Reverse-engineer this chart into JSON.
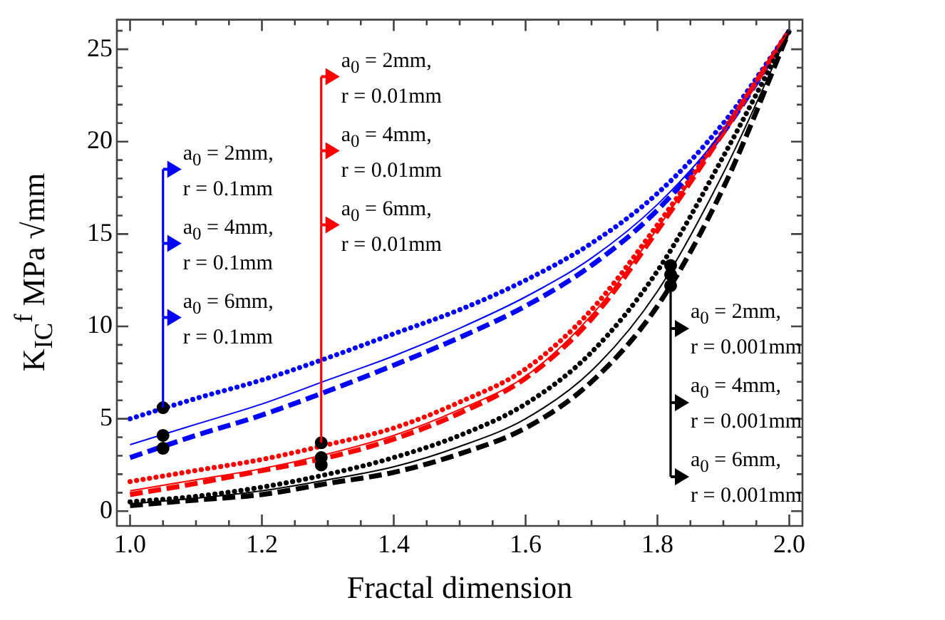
{
  "chart_data": {
    "type": "line",
    "xlabel": "Fractal dimension",
    "ylabel": "K$_{IC}$$^{f}$  MPa √mm",
    "x": [
      1.0,
      1.1,
      1.2,
      1.3,
      1.4,
      1.5,
      1.6,
      1.7,
      1.8,
      1.9,
      2.0
    ],
    "xlim": [
      0.98,
      2.02
    ],
    "xticks": [
      {
        "value": 1.0,
        "label": "1.0"
      },
      {
        "value": 1.05,
        "label": null
      },
      {
        "value": 1.1,
        "label": null
      },
      {
        "value": 1.15,
        "label": null
      },
      {
        "value": 1.2,
        "label": "1.2"
      },
      {
        "value": 1.25,
        "label": null
      },
      {
        "value": 1.3,
        "label": null
      },
      {
        "value": 1.35,
        "label": null
      },
      {
        "value": 1.4,
        "label": "1.4"
      },
      {
        "value": 1.45,
        "label": null
      },
      {
        "value": 1.5,
        "label": null
      },
      {
        "value": 1.55,
        "label": null
      },
      {
        "value": 1.6,
        "label": "1.6"
      },
      {
        "value": 1.65,
        "label": null
      },
      {
        "value": 1.7,
        "label": null
      },
      {
        "value": 1.75,
        "label": null
      },
      {
        "value": 1.8,
        "label": "1.8"
      },
      {
        "value": 1.85,
        "label": null
      },
      {
        "value": 1.9,
        "label": null
      },
      {
        "value": 1.95,
        "label": null
      },
      {
        "value": 2.0,
        "label": "2.0"
      }
    ],
    "ylim": [
      -0.8,
      26.6
    ],
    "yticks": [
      0,
      {
        "value": 1,
        "label": null
      },
      {
        "value": 2,
        "label": null
      },
      {
        "value": 3,
        "label": null
      },
      {
        "value": 4,
        "label": null
      },
      5,
      {
        "value": 6,
        "label": null
      },
      {
        "value": 7,
        "label": null
      },
      {
        "value": 8,
        "label": null
      },
      {
        "value": 9,
        "label": null
      },
      10,
      {
        "value": 11,
        "label": null
      },
      {
        "value": 12,
        "label": null
      },
      {
        "value": 13,
        "label": null
      },
      {
        "value": 14,
        "label": null
      },
      15,
      {
        "value": 16,
        "label": null
      },
      {
        "value": 17,
        "label": null
      },
      {
        "value": 18,
        "label": null
      },
      {
        "value": 19,
        "label": null
      },
      20,
      {
        "value": 21,
        "label": null
      },
      {
        "value": 22,
        "label": null
      },
      {
        "value": 23,
        "label": null
      },
      {
        "value": 24,
        "label": null
      },
      25,
      {
        "value": 26,
        "label": null
      }
    ],
    "grid": false,
    "legend": false,
    "series": [
      {
        "color": "#0000ff",
        "line_style": "dotted",
        "values": [
          5.0,
          6.1,
          7.1,
          8.3,
          9.6,
          10.9,
          12.5,
          14.5,
          17.2,
          21.0,
          26.0
        ]
      },
      {
        "color": "#0000ff",
        "line_style": "solid",
        "values": [
          3.6,
          4.7,
          5.8,
          7.1,
          8.4,
          9.9,
          11.6,
          13.7,
          16.6,
          20.6,
          26.0
        ]
      },
      {
        "color": "#0000ff",
        "line_style": "dashed",
        "values": [
          2.9,
          4.1,
          5.2,
          6.5,
          7.9,
          9.4,
          11.1,
          13.3,
          16.3,
          20.5,
          26.0
        ]
      },
      {
        "color": "#ff0000",
        "line_style": "dotted",
        "values": [
          1.6,
          2.2,
          2.8,
          3.6,
          4.5,
          5.9,
          7.7,
          10.9,
          15.5,
          20.6,
          26.0
        ]
      },
      {
        "color": "#ff0000",
        "line_style": "solid",
        "values": [
          1.1,
          1.7,
          2.3,
          3.1,
          4.1,
          5.5,
          7.3,
          10.6,
          15.3,
          20.5,
          26.0
        ]
      },
      {
        "color": "#ff0000",
        "line_style": "dashed",
        "values": [
          0.9,
          1.5,
          2.2,
          2.9,
          3.9,
          5.3,
          7.2,
          10.4,
          15.2,
          20.5,
          26.0
        ]
      },
      {
        "color": "#000000",
        "line_style": "dotted",
        "values": [
          0.5,
          0.8,
          1.3,
          2.0,
          2.9,
          4.1,
          5.8,
          8.6,
          13.0,
          19.2,
          26.0
        ]
      },
      {
        "color": "#000000",
        "line_style": "solid",
        "values": [
          0.4,
          0.7,
          1.1,
          1.7,
          2.4,
          3.5,
          5.0,
          7.6,
          11.9,
          18.3,
          26.0
        ]
      },
      {
        "color": "#000000",
        "line_style": "dashed",
        "values": [
          0.3,
          0.6,
          0.9,
          1.5,
          2.1,
          3.1,
          4.5,
          7.0,
          11.1,
          17.5,
          26.0
        ]
      },
      {
        "type": "scatter",
        "color": "#000000",
        "marker": "circle",
        "x": [
          1.05,
          1.05,
          1.05,
          1.29,
          1.29,
          1.29,
          1.82,
          1.82,
          1.82
        ],
        "values": [
          5.6,
          4.1,
          3.4,
          3.7,
          2.9,
          2.5,
          13.3,
          12.8,
          12.2
        ]
      }
    ],
    "annotations": [
      "a$_{0}$ = 2mm,\nr = 0.1mm",
      "a$_{0}$ = 4mm,\nr = 0.1mm",
      "a$_{0}$ = 6mm,\nr = 0.1mm",
      "a$_{0}$ = 2mm,\nr = 0.01mm",
      "a$_{0}$ = 4mm,\nr = 0.01mm",
      "a$_{0}$ = 6mm,\nr = 0.01mm",
      "a$_{0}$ = 2mm,\nr = 0.001mm",
      "a$_{0}$ = 4mm,\nr = 0.001mm",
      "a$_{0}$ = 6mm,\nr = 0.001mm"
    ]
  }
}
